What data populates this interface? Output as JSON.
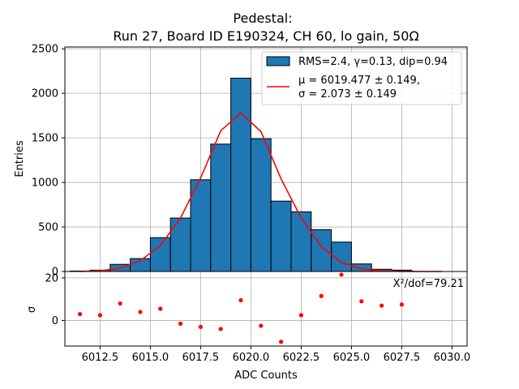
{
  "chart_data": [
    {
      "type": "bar",
      "title_line1": "Pedestal:",
      "title_line2": "Run 27, Board ID E190324, CH 60, lo gain, 50Ω",
      "xlabel": "",
      "ylabel": "Entries",
      "xlim": [
        6010.75,
        6030.75
      ],
      "ylim": [
        0,
        2520
      ],
      "yticks": [
        0,
        500,
        1000,
        1500,
        2000,
        2500
      ],
      "grid": true,
      "bar_color": "#1f77b4",
      "fit_color": "#ff0000",
      "legend_position": "top-right",
      "histogram": {
        "name": "RMS=2.4, γ=0.13, dip=0.94",
        "bin_width": 1,
        "bin_left_edges": [
          6011,
          6012,
          6013,
          6014,
          6015,
          6016,
          6017,
          6018,
          6019,
          6020,
          6021,
          6022,
          6023,
          6024,
          6025,
          6026,
          6027
        ],
        "values": [
          5,
          15,
          80,
          145,
          380,
          600,
          1030,
          1430,
          2170,
          1490,
          790,
          670,
          470,
          330,
          85,
          25,
          15
        ]
      },
      "fit": {
        "name_line1": "μ = 6019.477 ± 0.149,",
        "name_line2": "σ = 2.073 ± 0.149",
        "x": [
          6011.5,
          6012.5,
          6013.5,
          6014.5,
          6015.5,
          6016.5,
          6017.5,
          6018.5,
          6019.5,
          6020.5,
          6021.5,
          6022.5,
          6023.5,
          6024.5,
          6025.5,
          6026.5,
          6027.5,
          6028.5,
          6029.5
        ],
        "y": [
          1,
          7,
          37,
          122,
          290,
          600,
          1050,
          1580,
          1780,
          1570,
          1040,
          600,
          280,
          100,
          30,
          6,
          1,
          0,
          0
        ]
      }
    },
    {
      "type": "scatter",
      "xlabel": "ADC Counts",
      "ylabel": "σ",
      "xlim": [
        6010.75,
        6030.75
      ],
      "ylim": [
        -12,
        23
      ],
      "xticks": [
        "6012.5",
        "6015.0",
        "6017.5",
        "6020.0",
        "6022.5",
        "6025.0",
        "6027.5",
        "6030.0"
      ],
      "xtick_values": [
        6012.5,
        6015.0,
        6017.5,
        6020.0,
        6022.5,
        6025.0,
        6027.5,
        6030.0
      ],
      "yticks": [
        0,
        20
      ],
      "grid": true,
      "point_color": "#ff0000",
      "annotation": "X²/dof=79.21",
      "x": [
        6011.5,
        6012.5,
        6013.5,
        6014.5,
        6015.5,
        6016.5,
        6017.5,
        6018.5,
        6019.5,
        6020.5,
        6021.5,
        6022.5,
        6023.5,
        6024.5,
        6025.5,
        6026.5,
        6027.5
      ],
      "y": [
        3,
        2.5,
        8,
        4,
        5.5,
        -1.5,
        -3,
        -4,
        9.5,
        -2.5,
        -10,
        2.5,
        11.5,
        21.5,
        9,
        7,
        7.5
      ]
    }
  ]
}
